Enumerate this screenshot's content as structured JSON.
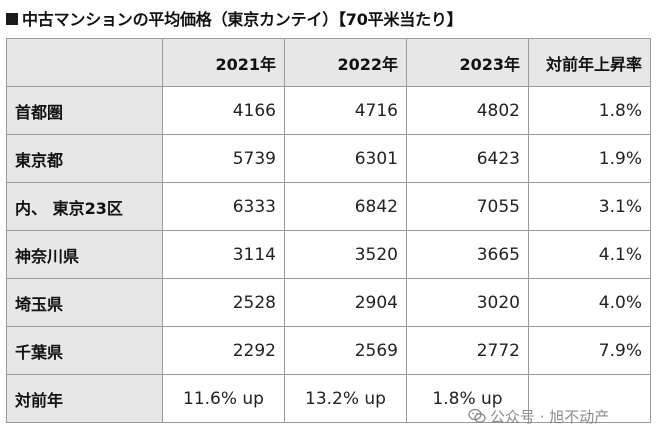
{
  "title": "中古マンションの平均価格（東京カンテイ）【70平米当たり】",
  "table": {
    "headers": [
      "",
      "2021年",
      "2022年",
      "2023年",
      "対前年上昇率"
    ],
    "rows": [
      {
        "label": "首都圏",
        "cells": [
          "4166",
          "4716",
          "4802",
          "1.8%"
        ]
      },
      {
        "label": "東京都",
        "cells": [
          "5739",
          "6301",
          "6423",
          "1.9%"
        ]
      },
      {
        "label": "内、 東京23区",
        "cells": [
          "6333",
          "6842",
          "7055",
          "3.1%"
        ]
      },
      {
        "label": "神奈川県",
        "cells": [
          "3114",
          "3520",
          "3665",
          "4.1%"
        ]
      },
      {
        "label": "埼玉県",
        "cells": [
          "2528",
          "2904",
          "3020",
          "4.0%"
        ]
      },
      {
        "label": "千葉県",
        "cells": [
          "2292",
          "2569",
          "2772",
          "7.9%"
        ]
      },
      {
        "label": "対前年",
        "cells": [
          "11.6% up",
          "13.2% up",
          "1.8% up",
          ""
        ]
      }
    ]
  },
  "watermark": {
    "text": "公众号 · 旭不动产",
    "icon": "wechat-icon"
  }
}
